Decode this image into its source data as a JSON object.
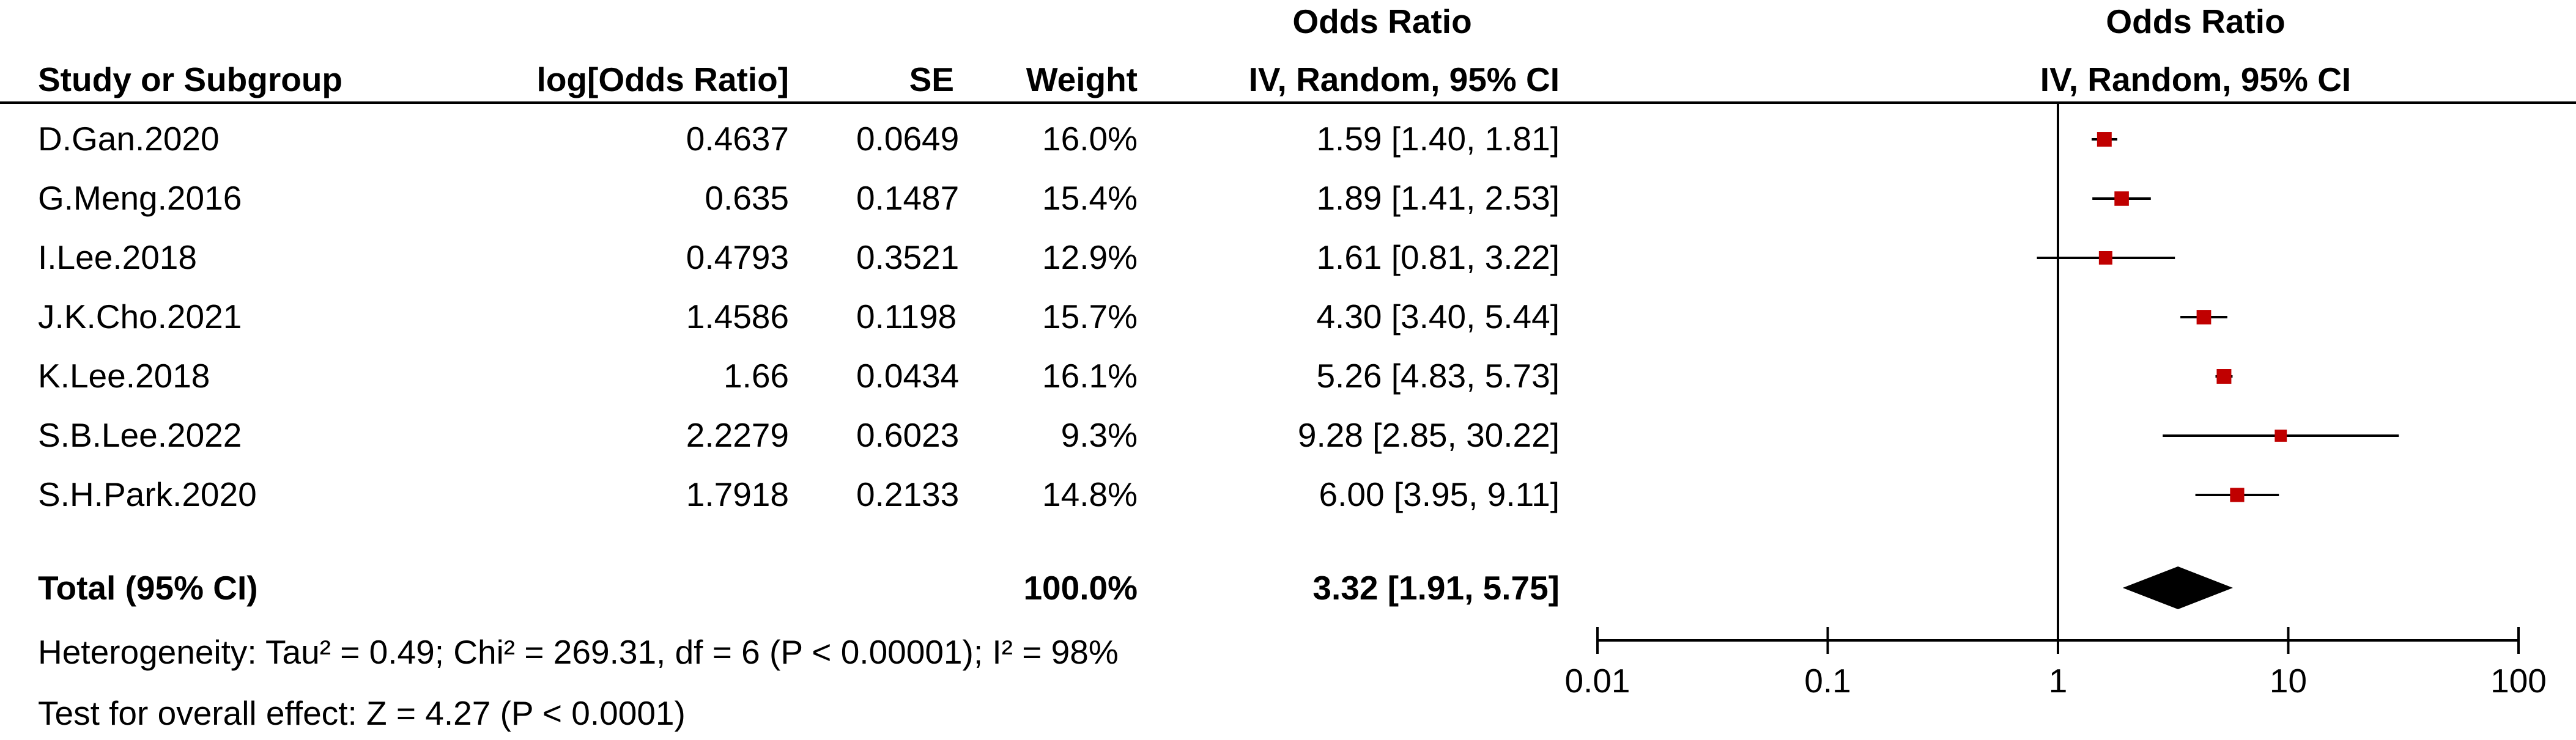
{
  "table": {
    "header_group_left": "Odds Ratio",
    "header_group_right": "Odds Ratio",
    "columns": {
      "study": "Study or Subgroup",
      "log_or": "log[Odds Ratio]",
      "se": "SE",
      "weight": "Weight",
      "ci": "IV, Random, 95% CI",
      "plot": "IV, Random, 95% CI"
    },
    "rows": [
      {
        "study": "D.Gan.2020",
        "log_or": "0.4637",
        "se": "0.0649",
        "weight": "16.0%",
        "ci": "1.59 [1.40, 1.81]"
      },
      {
        "study": "G.Meng.2016",
        "log_or": "0.635",
        "se": "0.1487",
        "weight": "15.4%",
        "ci": "1.89 [1.41, 2.53]"
      },
      {
        "study": "I.Lee.2018",
        "log_or": "0.4793",
        "se": "0.3521",
        "weight": "12.9%",
        "ci": "1.61 [0.81, 3.22]"
      },
      {
        "study": "J.K.Cho.2021",
        "log_or": "1.4586",
        "se": "0.1198",
        "weight": "15.7%",
        "ci": "4.30 [3.40, 5.44]"
      },
      {
        "study": "K.Lee.2018",
        "log_or": "1.66",
        "se": "0.0434",
        "weight": "16.1%",
        "ci": "5.26 [4.83, 5.73]"
      },
      {
        "study": "S.B.Lee.2022",
        "log_or": "2.2279",
        "se": "0.6023",
        "weight": "9.3%",
        "ci": "9.28 [2.85, 30.22]"
      },
      {
        "study": "S.H.Park.2020",
        "log_or": "1.7918",
        "se": "0.2133",
        "weight": "14.8%",
        "ci": "6.00 [3.95, 9.11]"
      }
    ],
    "total": {
      "label": "Total (95% CI)",
      "weight": "100.0%",
      "ci": "3.32 [1.91, 5.75]"
    },
    "heterogeneity": "Heterogeneity: Tau² = 0.49; Chi² = 269.31, df = 6 (P < 0.00001); I² = 98%",
    "overall_effect": "Test for overall effect: Z = 4.27 (P < 0.0001)"
  },
  "chart_data": {
    "type": "forest",
    "scale": "log",
    "xlim": [
      0.01,
      100
    ],
    "ticks": [
      {
        "value": 0.01,
        "label": "0.01"
      },
      {
        "value": 0.1,
        "label": "0.1"
      },
      {
        "value": 1,
        "label": "1"
      },
      {
        "value": 10,
        "label": "10"
      },
      {
        "value": 100,
        "label": "100"
      }
    ],
    "reference_line": 1,
    "studies": [
      {
        "or": 1.59,
        "lower": 1.4,
        "upper": 1.81,
        "weight": 16.0
      },
      {
        "or": 1.89,
        "lower": 1.41,
        "upper": 2.53,
        "weight": 15.4
      },
      {
        "or": 1.61,
        "lower": 0.81,
        "upper": 3.22,
        "weight": 12.9
      },
      {
        "or": 4.3,
        "lower": 3.4,
        "upper": 5.44,
        "weight": 15.7
      },
      {
        "or": 5.26,
        "lower": 4.83,
        "upper": 5.73,
        "weight": 16.1
      },
      {
        "or": 9.28,
        "lower": 2.85,
        "upper": 30.22,
        "weight": 9.3
      },
      {
        "or": 6.0,
        "lower": 3.95,
        "upper": 9.11,
        "weight": 14.8
      }
    ],
    "pooled": {
      "or": 3.32,
      "lower": 1.91,
      "upper": 5.75
    },
    "colors": {
      "marker": "#c00000",
      "line": "#000000",
      "diamond": "#000000"
    }
  }
}
